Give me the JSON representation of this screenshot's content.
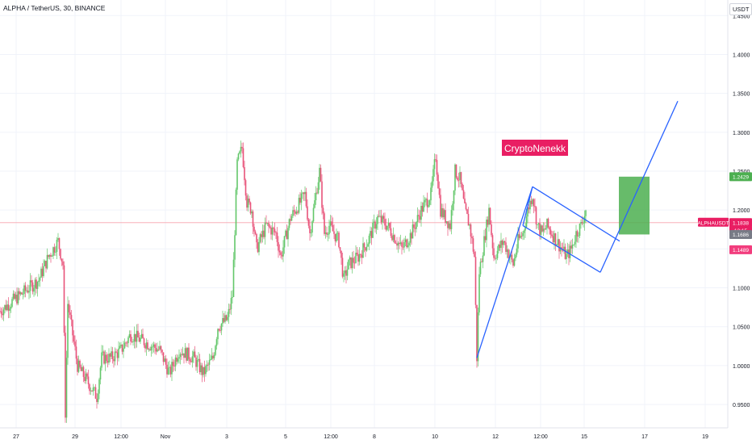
{
  "header": {
    "title": "ALPHA / TetherUS, 30, BINANCE"
  },
  "currency_button": "USDT",
  "watermark": "CryptoNenekk",
  "colors": {
    "up": "#26a69a",
    "down": "#ef5350",
    "up_candle": "#63c76a",
    "down_candle": "#e8537a",
    "trendline": "#2962ff",
    "target_zone": "#4caf50",
    "stop_zone": "#f23d7d",
    "watermark_bg": "#e91e63",
    "price_line": "#f7a5ad",
    "grid": "#f0f3fa"
  },
  "chart_data": {
    "type": "candlestick",
    "symbol": "ALPHAUSDT",
    "y_axis": {
      "ticks": [
        "1.4500",
        "1.4000",
        "1.3500",
        "1.3000",
        "1.2500",
        "1.2000",
        "1.1500",
        "1.1000",
        "1.0500",
        "1.0000",
        "0.9500"
      ],
      "ylim": [
        0.92,
        1.47
      ]
    },
    "x_axis": {
      "ticks": [
        "27",
        "29",
        "12:00",
        "Nov",
        "3",
        "5",
        "12:00",
        "8",
        "10",
        "12",
        "12:00",
        "15",
        "17",
        "19"
      ]
    },
    "price_labels": [
      {
        "text": "1.2429",
        "kind": "target",
        "value": 1.2429
      },
      {
        "text": "ALPHAUSDT",
        "kind": "symbol",
        "value": 1.1838
      },
      {
        "text": "1.1838",
        "kind": "current",
        "value": 1.1838
      },
      {
        "text": "12:15",
        "kind": "countdown",
        "value": 1.1735
      },
      {
        "text": "1.1686",
        "kind": "entry",
        "value": 1.1686
      },
      {
        "text": "1.1489",
        "kind": "stop",
        "value": 1.1489
      }
    ],
    "price_path": [
      [
        0,
        1.07
      ],
      [
        4,
        1.09
      ],
      [
        8,
        1.11
      ],
      [
        10,
        1.14
      ],
      [
        12,
        1.16
      ],
      [
        13,
        1.13
      ],
      [
        13.5,
        0.94
      ],
      [
        14,
        1.08
      ],
      [
        16,
        1.0
      ],
      [
        18,
        0.98
      ],
      [
        20,
        0.96
      ],
      [
        21,
        1.01
      ],
      [
        23,
        1.01
      ],
      [
        25,
        1.02
      ],
      [
        27,
        1.04
      ],
      [
        30,
        1.03
      ],
      [
        33,
        1.02
      ],
      [
        35,
        0.99
      ],
      [
        37,
        1.02
      ],
      [
        40,
        1.01
      ],
      [
        42,
        0.99
      ],
      [
        44,
        1.01
      ],
      [
        45,
        1.05
      ],
      [
        47,
        1.06
      ],
      [
        48,
        1.09
      ],
      [
        49,
        1.26
      ],
      [
        50,
        1.28
      ],
      [
        51,
        1.21
      ],
      [
        52,
        1.2
      ],
      [
        53,
        1.15
      ],
      [
        55,
        1.18
      ],
      [
        57,
        1.17
      ],
      [
        58,
        1.14
      ],
      [
        60,
        1.19
      ],
      [
        62,
        1.21
      ],
      [
        63,
        1.22
      ],
      [
        64,
        1.17
      ],
      [
        66,
        1.25
      ],
      [
        67,
        1.17
      ],
      [
        68,
        1.18
      ],
      [
        70,
        1.16
      ],
      [
        71,
        1.11
      ],
      [
        72,
        1.13
      ],
      [
        74,
        1.14
      ],
      [
        76,
        1.16
      ],
      [
        78,
        1.19
      ],
      [
        80,
        1.18
      ],
      [
        82,
        1.16
      ],
      [
        83,
        1.15
      ],
      [
        85,
        1.17
      ],
      [
        87,
        1.2
      ],
      [
        89,
        1.22
      ],
      [
        90,
        1.27
      ],
      [
        91,
        1.2
      ],
      [
        93,
        1.18
      ],
      [
        94,
        1.25
      ],
      [
        95,
        1.24
      ],
      [
        96,
        1.2
      ],
      [
        97,
        1.18
      ],
      [
        98,
        1.14
      ],
      [
        98.5,
        1.01
      ],
      [
        99,
        1.12
      ],
      [
        100,
        1.16
      ],
      [
        101,
        1.2
      ],
      [
        102,
        1.14
      ],
      [
        104,
        1.16
      ],
      [
        106,
        1.13
      ],
      [
        107,
        1.16
      ],
      [
        108,
        1.17
      ],
      [
        109,
        1.2
      ],
      [
        110,
        1.22
      ],
      [
        111,
        1.18
      ],
      [
        112,
        1.17
      ],
      [
        113,
        1.18
      ],
      [
        115,
        1.16
      ],
      [
        117,
        1.14
      ],
      [
        118,
        1.15
      ],
      [
        119,
        1.17
      ],
      [
        120,
        1.18
      ],
      [
        121,
        1.2
      ]
    ],
    "annotations": {
      "zigzag": [
        [
          98.5,
          1.01
        ],
        [
          110,
          1.23
        ],
        [
          124,
          1.2
        ]
      ],
      "flag_upper": [
        [
          110,
          1.23
        ],
        [
          128,
          1.16
        ]
      ],
      "flag_lower": [
        [
          108,
          1.18
        ],
        [
          124,
          1.12
        ]
      ],
      "flag_right": [
        [
          128,
          1.16
        ],
        [
          124,
          1.12
        ]
      ],
      "breakout": [
        [
          124,
          1.12
        ],
        [
          140,
          1.34
        ]
      ],
      "target_box": {
        "from_price": 1.1686,
        "to_price": 1.2429
      },
      "stop_box": {
        "from_price": 1.1489,
        "to_price": 1.1686
      }
    }
  }
}
